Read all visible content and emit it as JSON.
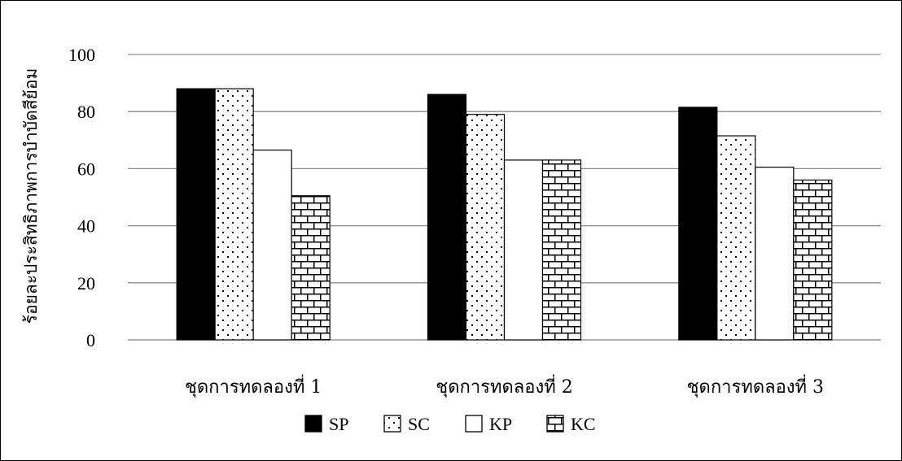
{
  "chart_data": {
    "type": "bar",
    "title": "",
    "xlabel": "",
    "ylabel": "ร้อยละประสิทธิภาพการบำบัดสีย้อม",
    "categories": [
      "ชุดการทดลองที่ 1",
      "ชุดการทดลองที่ 2",
      "ชุดการทดลองที่ 3"
    ],
    "series": [
      {
        "name": "SP",
        "values": [
          88,
          86,
          81.5
        ],
        "pattern": "solid-black"
      },
      {
        "name": "SC",
        "values": [
          88,
          79,
          71.5
        ],
        "pattern": "dots"
      },
      {
        "name": "KP",
        "values": [
          66.5,
          63,
          60.5
        ],
        "pattern": "white"
      },
      {
        "name": "KC",
        "values": [
          50.5,
          63,
          56
        ],
        "pattern": "brick"
      }
    ],
    "ylim": [
      0,
      100
    ],
    "yticks": [
      0,
      20,
      40,
      60,
      80,
      100
    ],
    "grid": true,
    "legend_position": "bottom"
  }
}
